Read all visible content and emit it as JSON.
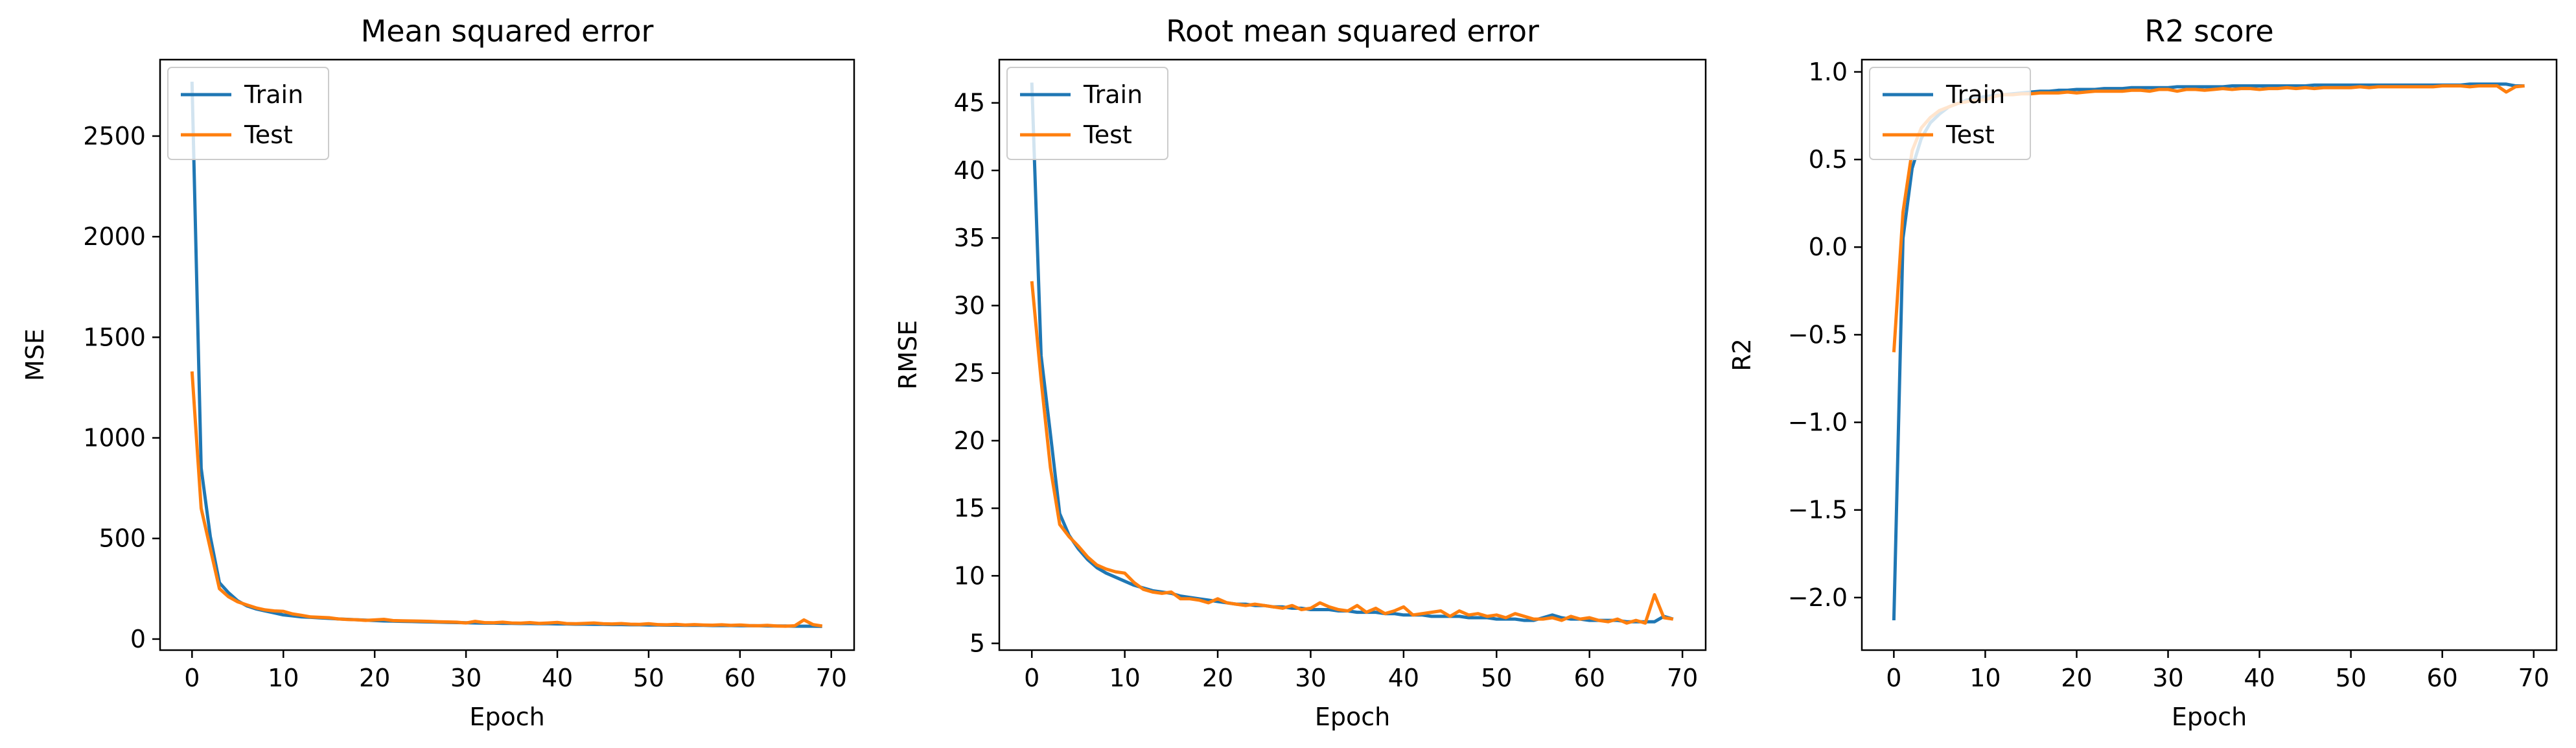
{
  "colors": {
    "train": "#1f77b4",
    "test": "#ff7f0e"
  },
  "chart_data": [
    {
      "type": "line",
      "title": "Mean squared error",
      "xlabel": "Epoch",
      "ylabel": "MSE",
      "xlim": [
        -3.5,
        72.5
      ],
      "ylim": [
        -55,
        2880
      ],
      "xticks": [
        0,
        10,
        20,
        30,
        40,
        50,
        60,
        70
      ],
      "yticks": [
        0,
        500,
        1000,
        1500,
        2000,
        2500
      ],
      "ytick_labels": [
        "0",
        "500",
        "1000",
        "1500",
        "2000",
        "2500"
      ],
      "legend_position": "top-left",
      "series": [
        {
          "name": "Train",
          "x": [
            0,
            1,
            2,
            3,
            4,
            5,
            6,
            7,
            8,
            9,
            10,
            11,
            12,
            13,
            14,
            15,
            16,
            17,
            18,
            19,
            20,
            21,
            22,
            23,
            24,
            25,
            26,
            27,
            28,
            29,
            30,
            31,
            32,
            33,
            34,
            35,
            36,
            37,
            38,
            39,
            40,
            41,
            42,
            43,
            44,
            45,
            46,
            47,
            48,
            49,
            50,
            51,
            52,
            53,
            54,
            55,
            56,
            57,
            58,
            59,
            60,
            61,
            62,
            63,
            64,
            65,
            66,
            67,
            68,
            69
          ],
          "y": [
            2770,
            850,
            510,
            280,
            230,
            190,
            165,
            150,
            140,
            130,
            120,
            115,
            110,
            108,
            105,
            103,
            100,
            98,
            96,
            94,
            92,
            90,
            89,
            88,
            87,
            86,
            85,
            84,
            83,
            82,
            81,
            80,
            79,
            79,
            78,
            78,
            77,
            77,
            76,
            76,
            75,
            75,
            74,
            74,
            73,
            73,
            72,
            72,
            71,
            71,
            70,
            70,
            69,
            69,
            68,
            68,
            68,
            67,
            67,
            67,
            66,
            66,
            66,
            65,
            65,
            65,
            64,
            64,
            64,
            63
          ]
        },
        {
          "name": "Test",
          "x": [
            0,
            1,
            2,
            3,
            4,
            5,
            6,
            7,
            8,
            9,
            10,
            11,
            12,
            13,
            14,
            15,
            16,
            17,
            18,
            19,
            20,
            21,
            22,
            23,
            24,
            25,
            26,
            27,
            28,
            29,
            30,
            31,
            32,
            33,
            34,
            35,
            36,
            37,
            38,
            39,
            40,
            41,
            42,
            43,
            44,
            45,
            46,
            47,
            48,
            49,
            50,
            51,
            52,
            53,
            54,
            55,
            56,
            57,
            58,
            59,
            60,
            61,
            62,
            63,
            64,
            65,
            66,
            67,
            68,
            69
          ],
          "y": [
            1330,
            650,
            450,
            250,
            210,
            185,
            170,
            155,
            145,
            140,
            138,
            125,
            118,
            110,
            108,
            106,
            100,
            97,
            96,
            93,
            95,
            98,
            92,
            91,
            90,
            89,
            88,
            86,
            85,
            84,
            80,
            88,
            82,
            81,
            84,
            80,
            79,
            82,
            78,
            80,
            83,
            77,
            76,
            78,
            80,
            76,
            75,
            77,
            74,
            73,
            76,
            72,
            71,
            73,
            70,
            72,
            70,
            69,
            71,
            68,
            70,
            67,
            66,
            68,
            65,
            64,
            66,
            95,
            72,
            65
          ]
        }
      ]
    },
    {
      "type": "line",
      "title": "Root mean squared error",
      "xlabel": "Epoch",
      "ylabel": "RMSE",
      "xlim": [
        -3.5,
        72.5
      ],
      "ylim": [
        4.5,
        48.2
      ],
      "xticks": [
        0,
        10,
        20,
        30,
        40,
        50,
        60,
        70
      ],
      "yticks": [
        5,
        10,
        15,
        20,
        25,
        30,
        35,
        40,
        45
      ],
      "ytick_labels": [
        "5",
        "10",
        "15",
        "20",
        "25",
        "30",
        "35",
        "40",
        "45"
      ],
      "legend_position": "top-left",
      "series": [
        {
          "name": "Train",
          "x": [
            0,
            1,
            2,
            3,
            4,
            5,
            6,
            7,
            8,
            9,
            10,
            11,
            12,
            13,
            14,
            15,
            16,
            17,
            18,
            19,
            20,
            21,
            22,
            23,
            24,
            25,
            26,
            27,
            28,
            29,
            30,
            31,
            32,
            33,
            34,
            35,
            36,
            37,
            38,
            39,
            40,
            41,
            42,
            43,
            44,
            45,
            46,
            47,
            48,
            49,
            50,
            51,
            52,
            53,
            54,
            55,
            56,
            57,
            58,
            59,
            60,
            61,
            62,
            63,
            64,
            65,
            66,
            67,
            68,
            69
          ],
          "y": [
            46.5,
            26.3,
            20.5,
            14.6,
            13.0,
            12.0,
            11.2,
            10.6,
            10.2,
            9.9,
            9.6,
            9.3,
            9.1,
            8.9,
            8.8,
            8.7,
            8.5,
            8.4,
            8.3,
            8.2,
            8.1,
            8.0,
            7.9,
            7.9,
            7.8,
            7.8,
            7.7,
            7.7,
            7.6,
            7.6,
            7.5,
            7.5,
            7.5,
            7.4,
            7.4,
            7.3,
            7.3,
            7.3,
            7.2,
            7.2,
            7.1,
            7.1,
            7.1,
            7.0,
            7.0,
            7.0,
            7.0,
            6.9,
            6.9,
            6.9,
            6.8,
            6.8,
            6.8,
            6.7,
            6.7,
            6.9,
            7.1,
            6.9,
            6.8,
            6.8,
            6.7,
            6.7,
            6.7,
            6.7,
            6.6,
            6.6,
            6.6,
            6.6,
            7.0,
            6.8
          ]
        },
        {
          "name": "Test",
          "x": [
            0,
            1,
            2,
            3,
            4,
            5,
            6,
            7,
            8,
            9,
            10,
            11,
            12,
            13,
            14,
            15,
            16,
            17,
            18,
            19,
            20,
            21,
            22,
            23,
            24,
            25,
            26,
            27,
            28,
            29,
            30,
            31,
            32,
            33,
            34,
            35,
            36,
            37,
            38,
            39,
            40,
            41,
            42,
            43,
            44,
            45,
            46,
            47,
            48,
            49,
            50,
            51,
            52,
            53,
            54,
            55,
            56,
            57,
            58,
            59,
            60,
            61,
            62,
            63,
            64,
            65,
            66,
            67,
            68,
            69
          ],
          "y": [
            31.8,
            24.5,
            18.0,
            13.8,
            12.9,
            12.2,
            11.4,
            10.8,
            10.5,
            10.3,
            10.2,
            9.5,
            9.0,
            8.8,
            8.7,
            8.8,
            8.3,
            8.3,
            8.2,
            8.0,
            8.3,
            8.0,
            7.9,
            7.8,
            7.9,
            7.8,
            7.7,
            7.6,
            7.8,
            7.5,
            7.6,
            8.0,
            7.7,
            7.5,
            7.4,
            7.8,
            7.3,
            7.6,
            7.2,
            7.4,
            7.7,
            7.1,
            7.2,
            7.3,
            7.4,
            7.0,
            7.4,
            7.1,
            7.2,
            7.0,
            7.1,
            6.9,
            7.2,
            7.0,
            6.8,
            6.8,
            6.9,
            6.7,
            7.0,
            6.8,
            6.9,
            6.7,
            6.6,
            6.8,
            6.5,
            6.7,
            6.5,
            8.6,
            6.9,
            6.8
          ]
        }
      ]
    },
    {
      "type": "line",
      "title": "R2 score",
      "xlabel": "Epoch",
      "ylabel": "R2",
      "xlim": [
        -3.5,
        72.5
      ],
      "ylim": [
        -2.3,
        1.07
      ],
      "xticks": [
        0,
        10,
        20,
        30,
        40,
        50,
        60,
        70
      ],
      "yticks": [
        1.0,
        0.5,
        0.0,
        -0.5,
        -1.0,
        -1.5,
        -2.0
      ],
      "ytick_labels": [
        "1.0",
        "0.5",
        "0.0",
        "−0.5",
        "−1.0",
        "−1.5",
        "−2.0"
      ],
      "legend_position": "top-left",
      "series": [
        {
          "name": "Train",
          "x": [
            0,
            1,
            2,
            3,
            4,
            5,
            6,
            7,
            8,
            9,
            10,
            11,
            12,
            13,
            14,
            15,
            16,
            17,
            18,
            19,
            20,
            21,
            22,
            23,
            24,
            25,
            26,
            27,
            28,
            29,
            30,
            31,
            32,
            33,
            34,
            35,
            36,
            37,
            38,
            39,
            40,
            41,
            42,
            43,
            44,
            45,
            46,
            47,
            48,
            49,
            50,
            51,
            52,
            53,
            54,
            55,
            56,
            57,
            58,
            59,
            60,
            61,
            62,
            63,
            64,
            65,
            66,
            67,
            68,
            69
          ],
          "y": [
            -2.13,
            0.05,
            0.45,
            0.62,
            0.71,
            0.76,
            0.8,
            0.82,
            0.84,
            0.85,
            0.86,
            0.865,
            0.87,
            0.875,
            0.88,
            0.885,
            0.89,
            0.89,
            0.895,
            0.895,
            0.9,
            0.9,
            0.9,
            0.905,
            0.905,
            0.905,
            0.91,
            0.91,
            0.91,
            0.91,
            0.91,
            0.915,
            0.915,
            0.915,
            0.915,
            0.915,
            0.915,
            0.92,
            0.92,
            0.92,
            0.92,
            0.92,
            0.92,
            0.92,
            0.92,
            0.92,
            0.925,
            0.925,
            0.925,
            0.925,
            0.925,
            0.925,
            0.925,
            0.925,
            0.925,
            0.925,
            0.925,
            0.925,
            0.925,
            0.925,
            0.925,
            0.925,
            0.925,
            0.93,
            0.93,
            0.93,
            0.93,
            0.93,
            0.92,
            0.92
          ]
        },
        {
          "name": "Test",
          "x": [
            0,
            1,
            2,
            3,
            4,
            5,
            6,
            7,
            8,
            9,
            10,
            11,
            12,
            13,
            14,
            15,
            16,
            17,
            18,
            19,
            20,
            21,
            22,
            23,
            24,
            25,
            26,
            27,
            28,
            29,
            30,
            31,
            32,
            33,
            34,
            35,
            36,
            37,
            38,
            39,
            40,
            41,
            42,
            43,
            44,
            45,
            46,
            47,
            48,
            49,
            50,
            51,
            52,
            53,
            54,
            55,
            56,
            57,
            58,
            59,
            60,
            61,
            62,
            63,
            64,
            65,
            66,
            67,
            68,
            69
          ],
          "y": [
            -0.6,
            0.2,
            0.55,
            0.68,
            0.74,
            0.78,
            0.8,
            0.82,
            0.83,
            0.84,
            0.84,
            0.86,
            0.87,
            0.87,
            0.875,
            0.875,
            0.88,
            0.88,
            0.88,
            0.885,
            0.88,
            0.885,
            0.89,
            0.89,
            0.89,
            0.89,
            0.895,
            0.895,
            0.89,
            0.9,
            0.9,
            0.89,
            0.9,
            0.9,
            0.895,
            0.9,
            0.905,
            0.9,
            0.905,
            0.905,
            0.9,
            0.905,
            0.905,
            0.91,
            0.905,
            0.91,
            0.905,
            0.91,
            0.91,
            0.91,
            0.91,
            0.915,
            0.91,
            0.915,
            0.915,
            0.915,
            0.915,
            0.915,
            0.915,
            0.915,
            0.92,
            0.92,
            0.92,
            0.915,
            0.92,
            0.92,
            0.92,
            0.885,
            0.915,
            0.92
          ]
        }
      ]
    }
  ]
}
